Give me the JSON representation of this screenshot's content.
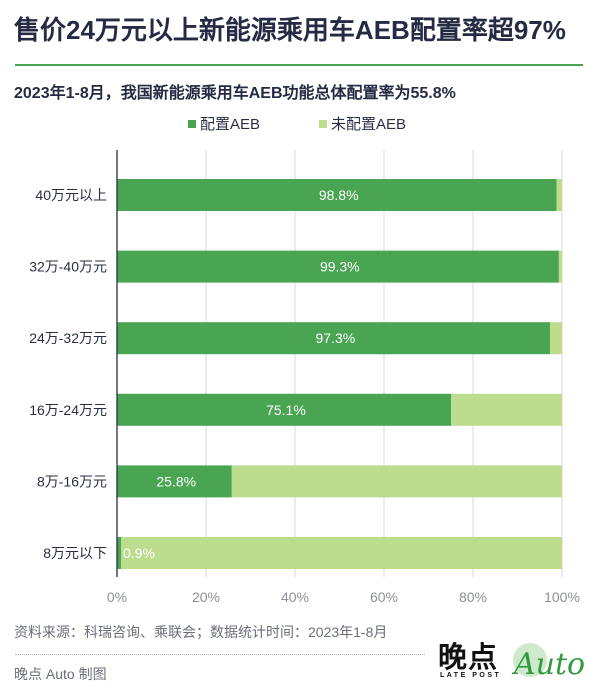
{
  "header": {
    "title": "售价24万元以上新能源乘用车AEB配置率超97%",
    "subtitle": "2023年1-8月，我国新能源乘用车AEB功能总体配置率为55.8%"
  },
  "footer": {
    "source": "资料来源：科瑞咨询、乘联会；数据统计时间：2023年1-8月",
    "credit": "晚点 Auto 制图",
    "logo_cn": "晚点",
    "logo_en": "LATE POST",
    "logo_auto": "Auto"
  },
  "colors": {
    "equipped": "#4aa553",
    "not_equipped": "#bcdc8e",
    "axis": "#2a2f45",
    "grid": "#d8d8d8"
  },
  "chart_data": {
    "type": "bar",
    "orientation": "horizontal",
    "stacked": true,
    "categories": [
      "40万元以上",
      "32万-40万元",
      "24万-32万元",
      "16万-24万元",
      "8万-16万元",
      "8万元以下"
    ],
    "series": [
      {
        "name": "配置AEB",
        "values": [
          98.8,
          99.3,
          97.3,
          75.1,
          25.8,
          0.9
        ]
      },
      {
        "name": "未配置AEB",
        "values": [
          1.2,
          0.7,
          2.7,
          24.9,
          74.2,
          99.1
        ]
      }
    ],
    "data_labels": [
      "98.8%",
      "99.3%",
      "97.3%",
      "75.1%",
      "25.8%",
      "0.9%"
    ],
    "x_ticks": [
      "0%",
      "20%",
      "40%",
      "60%",
      "80%",
      "100%"
    ],
    "xlim": [
      0,
      100
    ],
    "grid": true,
    "legend_position": "top-center",
    "title": "售价24万元以上新能源乘用车AEB配置率超97%",
    "xlabel": "",
    "ylabel": ""
  }
}
